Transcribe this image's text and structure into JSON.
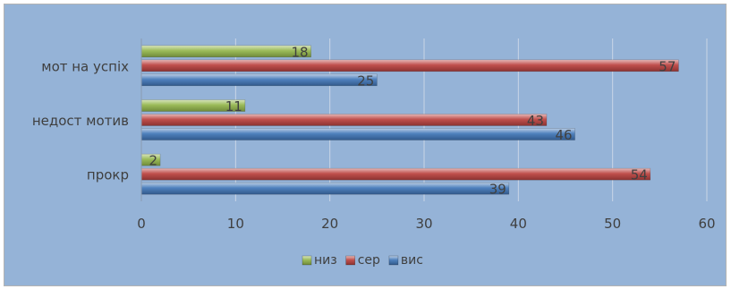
{
  "chart_data": {
    "type": "bar",
    "orientation": "horizontal",
    "categories": [
      "мот на успіх",
      "недост мотив",
      "прокр"
    ],
    "series": [
      {
        "name": "низ",
        "color": "#9bbb59",
        "values": [
          18,
          11,
          2
        ]
      },
      {
        "name": "сер",
        "color": "#c0504d",
        "values": [
          57,
          43,
          54
        ]
      },
      {
        "name": "вис",
        "color": "#4f81bd",
        "values": [
          25,
          46,
          39
        ]
      }
    ],
    "xlim": [
      0,
      60
    ],
    "xticks": [
      0,
      10,
      20,
      30,
      40,
      50,
      60
    ],
    "grid": true,
    "legend_position": "bottom",
    "data_labels": true
  }
}
